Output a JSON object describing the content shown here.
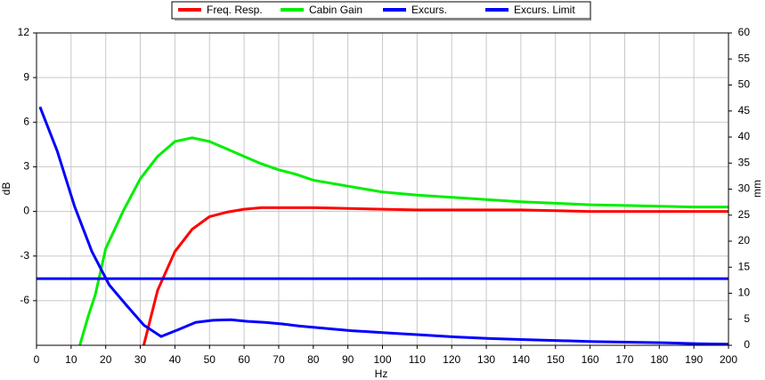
{
  "chart_data": {
    "type": "line",
    "xlabel": "Hz",
    "ylabel": "dB",
    "y2label": "mm",
    "xlim": [
      0,
      200
    ],
    "xticks": [
      0,
      10,
      20,
      30,
      40,
      50,
      60,
      70,
      80,
      90,
      100,
      110,
      120,
      130,
      140,
      150,
      160,
      170,
      180,
      190,
      200
    ],
    "ylim": [
      -9,
      12
    ],
    "yticks": [
      12,
      9,
      6,
      3,
      0,
      -3,
      -6
    ],
    "y2lim": [
      0,
      60
    ],
    "y2ticks": [
      60,
      55,
      50,
      45,
      40,
      35,
      30,
      25,
      20,
      15,
      10,
      5,
      0
    ],
    "grid": true,
    "series": [
      {
        "name": "Freq. Resp.",
        "color": "#ff0000",
        "axis": "y",
        "x": [
          31,
          35,
          40,
          45,
          50,
          55,
          60,
          65,
          70,
          80,
          90,
          100,
          110,
          120,
          130,
          140,
          150,
          160,
          170,
          180,
          190,
          200
        ],
        "values": [
          -9,
          -5.3,
          -2.7,
          -1.2,
          -0.35,
          -0.05,
          0.15,
          0.25,
          0.25,
          0.25,
          0.2,
          0.15,
          0.1,
          0.1,
          0.1,
          0.1,
          0.05,
          0,
          0,
          0,
          0,
          0
        ]
      },
      {
        "name": "Cabin Gain",
        "color": "#00ee00",
        "axis": "y",
        "x": [
          12.5,
          15,
          17,
          20,
          25,
          30,
          35,
          40,
          45,
          50,
          55,
          60,
          65,
          70,
          75,
          80,
          85,
          90,
          95,
          100,
          110,
          120,
          130,
          140,
          150,
          160,
          170,
          180,
          190,
          200
        ],
        "values": [
          -9,
          -7,
          -5.6,
          -2.5,
          0,
          2.2,
          3.7,
          4.7,
          4.95,
          4.7,
          4.2,
          3.7,
          3.2,
          2.8,
          2.5,
          2.1,
          1.9,
          1.7,
          1.5,
          1.3,
          1.1,
          0.95,
          0.8,
          0.65,
          0.55,
          0.45,
          0.4,
          0.35,
          0.3,
          0.3
        ]
      },
      {
        "name": "Excurs.",
        "color": "#0000ff",
        "axis": "y2",
        "x": [
          1,
          6,
          11,
          16,
          21,
          26,
          31,
          36,
          41,
          46,
          51,
          56,
          61,
          66,
          71,
          76,
          81,
          86,
          91,
          96,
          101,
          111,
          121,
          131,
          141,
          151,
          161,
          171,
          181,
          191,
          200
        ],
        "values": [
          45.8,
          37.3,
          26.7,
          18,
          11.6,
          7.7,
          3.9,
          1.7,
          3,
          4.4,
          4.8,
          4.9,
          4.6,
          4.4,
          4.1,
          3.7,
          3.4,
          3.1,
          2.8,
          2.6,
          2.4,
          2,
          1.6,
          1.3,
          1.1,
          0.9,
          0.7,
          0.6,
          0.5,
          0.3,
          0.2
        ]
      },
      {
        "name": "Excurs. Limit",
        "color": "#0000ff",
        "axis": "y2",
        "x": [
          0,
          200
        ],
        "values": [
          12.8,
          12.8
        ]
      }
    ]
  }
}
